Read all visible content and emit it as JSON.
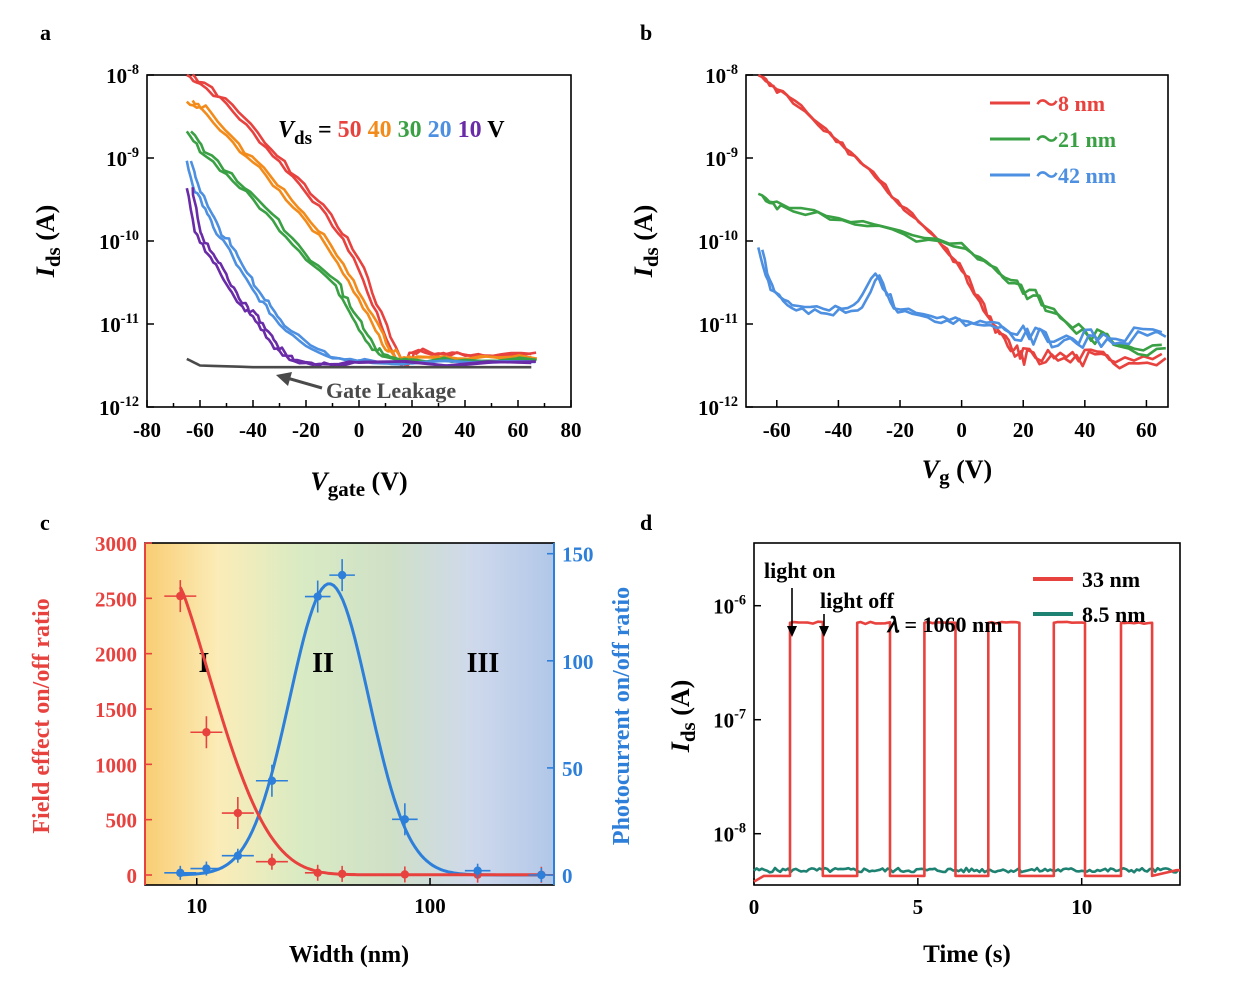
{
  "chart_data": [
    {
      "panel": "a",
      "type": "line",
      "y_scale": "log",
      "xlim": [
        -80,
        80
      ],
      "ylim_exp": [
        -12,
        -8
      ],
      "x_ticks": [
        "-80",
        "-60",
        "-40",
        "-20",
        "0",
        "20",
        "40",
        "60",
        "80"
      ],
      "y_ticks": [
        {
          "base": "10",
          "exp": "-12"
        },
        {
          "base": "10",
          "exp": "-11"
        },
        {
          "base": "10",
          "exp": "-10"
        },
        {
          "base": "10",
          "exp": "-9"
        },
        {
          "base": "10",
          "exp": "-8"
        }
      ],
      "xlabel": {
        "main": "V",
        "sub": "gate",
        "unit": " (V)"
      },
      "ylabel": {
        "main": "I",
        "sub": "ds",
        "unit": " (A)"
      },
      "legend_text": {
        "v": "V",
        "sub": "ds",
        "eq": " =",
        "unit": " V"
      },
      "annotation": "Gate Leakage",
      "series": [
        {
          "name": "50",
          "color": "#e8423f",
          "points": [
            [
              -65,
              -8.0
            ],
            [
              -60,
              -8.1
            ],
            [
              -50,
              -8.35
            ],
            [
              -40,
              -8.7
            ],
            [
              -30,
              -9.05
            ],
            [
              -20,
              -9.4
            ],
            [
              -10,
              -9.8
            ],
            [
              -2,
              -10.2
            ],
            [
              5,
              -10.75
            ],
            [
              12,
              -11.3
            ],
            [
              16,
              -11.5
            ],
            [
              20,
              -11.33
            ],
            [
              30,
              -11.36
            ],
            [
              40,
              -11.36
            ],
            [
              50,
              -11.36
            ],
            [
              65,
              -11.36
            ]
          ]
        },
        {
          "name": "40",
          "color": "#f38b1b",
          "points": [
            [
              -65,
              -8.35
            ],
            [
              -60,
              -8.4
            ],
            [
              -50,
              -8.75
            ],
            [
              -40,
              -9.05
            ],
            [
              -30,
              -9.4
            ],
            [
              -20,
              -9.75
            ],
            [
              -10,
              -10.15
            ],
            [
              -2,
              -10.6
            ],
            [
              5,
              -11.0
            ],
            [
              10,
              -11.3
            ],
            [
              14,
              -11.4
            ],
            [
              20,
              -11.4
            ],
            [
              40,
              -11.4
            ],
            [
              65,
              -11.4
            ]
          ]
        },
        {
          "name": "30",
          "color": "#3aa044",
          "points": [
            [
              -65,
              -8.7
            ],
            [
              -60,
              -8.9
            ],
            [
              -50,
              -9.2
            ],
            [
              -40,
              -9.5
            ],
            [
              -30,
              -9.85
            ],
            [
              -20,
              -10.2
            ],
            [
              -10,
              -10.5
            ],
            [
              -5,
              -10.75
            ],
            [
              0,
              -11.05
            ],
            [
              5,
              -11.3
            ],
            [
              10,
              -11.42
            ],
            [
              20,
              -11.44
            ],
            [
              40,
              -11.44
            ],
            [
              65,
              -11.44
            ]
          ]
        },
        {
          "name": "20",
          "color": "#4d8fe0",
          "points": [
            [
              -65,
              -9.05
            ],
            [
              -62,
              -9.4
            ],
            [
              -58,
              -9.6
            ],
            [
              -55,
              -9.85
            ],
            [
              -50,
              -10.05
            ],
            [
              -45,
              -10.35
            ],
            [
              -40,
              -10.6
            ],
            [
              -35,
              -10.8
            ],
            [
              -30,
              -11.0
            ],
            [
              -20,
              -11.25
            ],
            [
              -10,
              -11.4
            ],
            [
              0,
              -11.45
            ],
            [
              20,
              -11.45
            ],
            [
              65,
              -11.45
            ]
          ]
        },
        {
          "name": "10",
          "color": "#6a2ba8",
          "points": [
            [
              -65,
              -9.35
            ],
            [
              -62,
              -9.9
            ],
            [
              -58,
              -10.1
            ],
            [
              -54,
              -10.3
            ],
            [
              -50,
              -10.5
            ],
            [
              -46,
              -10.75
            ],
            [
              -42,
              -10.85
            ],
            [
              -38,
              -11.0
            ],
            [
              -34,
              -11.2
            ],
            [
              -30,
              -11.35
            ],
            [
              -25,
              -11.45
            ],
            [
              -15,
              -11.48
            ],
            [
              0,
              -11.48
            ],
            [
              65,
              -11.47
            ]
          ]
        },
        {
          "name": "Gate Leakage",
          "color": "#4a4a4a",
          "points": [
            [
              -65,
              -11.42
            ],
            [
              -60,
              -11.5
            ],
            [
              -40,
              -11.52
            ],
            [
              0,
              -11.52
            ],
            [
              40,
              -11.52
            ],
            [
              65,
              -11.52
            ]
          ]
        }
      ]
    },
    {
      "panel": "b",
      "type": "line",
      "y_scale": "log",
      "xlim": [
        -70,
        67
      ],
      "ylim_exp": [
        -12,
        -8
      ],
      "x_ticks": [
        "-60",
        "-40",
        "-20",
        "0",
        "20",
        "40",
        "60"
      ],
      "y_ticks": [
        {
          "base": "10",
          "exp": "-12"
        },
        {
          "base": "10",
          "exp": "-11"
        },
        {
          "base": "10",
          "exp": "-10"
        },
        {
          "base": "10",
          "exp": "-9"
        },
        {
          "base": "10",
          "exp": "-8"
        }
      ],
      "xlabel": {
        "main": "V",
        "sub": "g",
        "unit": " (V)"
      },
      "ylabel": {
        "main": "I",
        "sub": "ds",
        "unit": " (A)"
      },
      "series": [
        {
          "name": "～8  nm",
          "color": "#e8423f",
          "points": [
            [
              -66,
              -8.0
            ],
            [
              -60,
              -8.15
            ],
            [
              -50,
              -8.45
            ],
            [
              -40,
              -8.8
            ],
            [
              -30,
              -9.15
            ],
            [
              -20,
              -9.55
            ],
            [
              -10,
              -9.9
            ],
            [
              0,
              -10.35
            ],
            [
              5,
              -10.7
            ],
            [
              10,
              -11.0
            ],
            [
              15,
              -11.3
            ],
            [
              20,
              -11.35
            ],
            [
              30,
              -11.38
            ],
            [
              40,
              -11.38
            ],
            [
              50,
              -11.38
            ],
            [
              65,
              -11.36
            ]
          ]
        },
        {
          "name": "～21  nm",
          "color": "#3aa044",
          "points": [
            [
              -66,
              -9.45
            ],
            [
              -60,
              -9.55
            ],
            [
              -40,
              -9.72
            ],
            [
              -20,
              -9.88
            ],
            [
              0,
              -10.05
            ],
            [
              10,
              -10.3
            ],
            [
              20,
              -10.55
            ],
            [
              30,
              -10.85
            ],
            [
              40,
              -11.1
            ],
            [
              50,
              -11.2
            ],
            [
              65,
              -11.25
            ]
          ]
        },
        {
          "name": "～42  nm",
          "color": "#4d8fe0",
          "points": [
            [
              -66,
              -10.1
            ],
            [
              -62,
              -10.6
            ],
            [
              -55,
              -10.75
            ],
            [
              -45,
              -10.82
            ],
            [
              -35,
              -10.78
            ],
            [
              -28,
              -10.4
            ],
            [
              -22,
              -10.8
            ],
            [
              -10,
              -10.9
            ],
            [
              0,
              -10.95
            ],
            [
              10,
              -11.0
            ],
            [
              20,
              -11.1
            ],
            [
              30,
              -11.15
            ],
            [
              40,
              -11.15
            ],
            [
              50,
              -11.15
            ],
            [
              65,
              -11.1
            ]
          ]
        }
      ]
    },
    {
      "panel": "c",
      "type": "scatter",
      "x_scale": "log",
      "xlim": [
        6,
        340
      ],
      "ylim_left": [
        0,
        3000
      ],
      "ylim_right": [
        0,
        155
      ],
      "x_ticks": [
        "10",
        "100"
      ],
      "y_ticks_left": [
        "0",
        "500",
        "1000",
        "1500",
        "2000",
        "2500",
        "3000"
      ],
      "y_ticks_right": [
        "0",
        "50",
        "100",
        "150"
      ],
      "xlabel": "Width  (nm)",
      "ylabel_left": "Field effect on/off ratio",
      "ylabel_right": "Photocurrent on/off ratio",
      "regions": [
        "I",
        "II",
        "III"
      ],
      "series": [
        {
          "axis": "left",
          "color": "#e8423f",
          "x": [
            8.5,
            11,
            15,
            21,
            33,
            42,
            78,
            160,
            300
          ],
          "y": [
            2520,
            1290,
            560,
            120,
            20,
            10,
            5,
            3,
            2
          ]
        },
        {
          "axis": "right",
          "color": "#2d7fd9",
          "x": [
            8.5,
            11,
            15,
            21,
            33,
            42,
            78,
            160,
            300
          ],
          "y": [
            1,
            3,
            9,
            44,
            130,
            140,
            26,
            2,
            0
          ]
        }
      ]
    },
    {
      "panel": "d",
      "type": "line",
      "y_scale": "log",
      "xlim": [
        0,
        13
      ],
      "ylim_exp": [
        -8.45,
        -5.45
      ],
      "x_ticks": [
        "0",
        "5",
        "10"
      ],
      "y_ticks": [
        {
          "base": "10",
          "exp": "-8"
        },
        {
          "base": "10",
          "exp": "-7"
        },
        {
          "base": "10",
          "exp": "-6"
        }
      ],
      "xlabel": "Time (s)",
      "ylabel": {
        "main": "I",
        "sub": "ds",
        "unit": " (A)"
      },
      "annotations": {
        "on": "light on",
        "off": "light off",
        "lambda": "𝜆 = 1060 nm"
      },
      "series": [
        {
          "name": "33 nm",
          "color": "#e8423f",
          "on_level_exp": -6.15,
          "off_level_exp": -8.37,
          "on_intervals": [
            [
              1.1,
              2.1
            ],
            [
              3.15,
              4.15
            ],
            [
              5.2,
              6.15
            ],
            [
              7.15,
              8.1
            ],
            [
              9.15,
              10.1
            ],
            [
              11.2,
              12.15
            ]
          ]
        },
        {
          "name": "8.5 nm",
          "color": "#1e8272",
          "level_exp": -8.32
        }
      ]
    }
  ]
}
